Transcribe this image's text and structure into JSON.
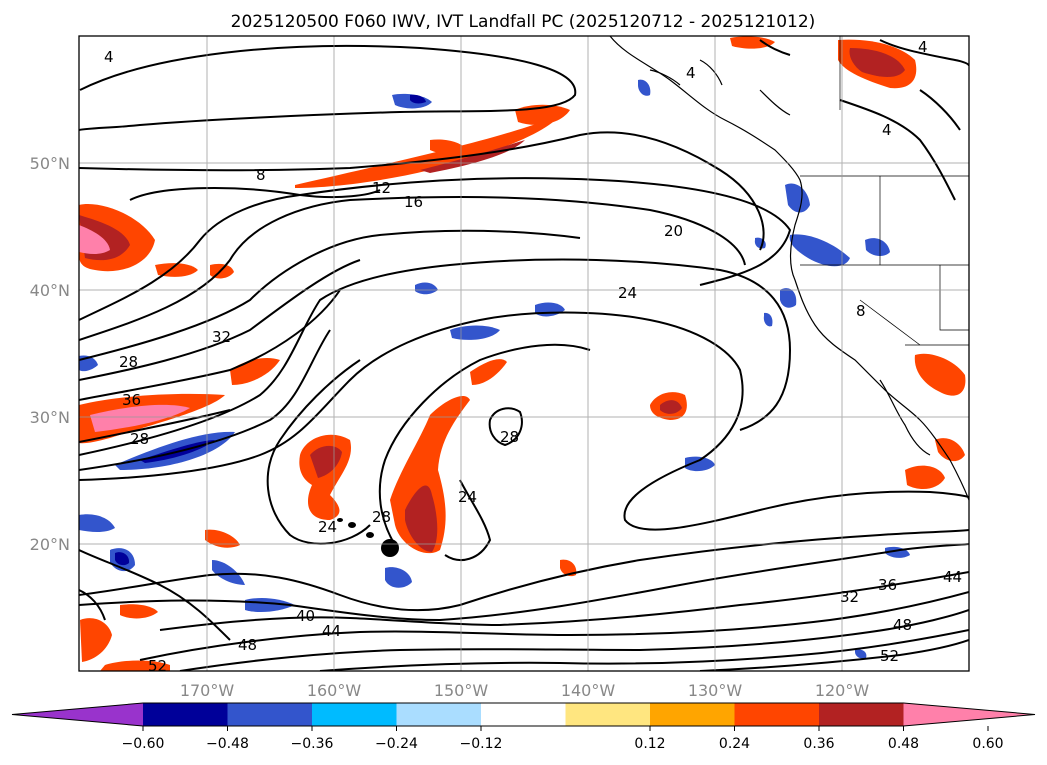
{
  "title": "2025120500 F060 IWV, IVT Landfall PC (2025120712 - 2025121012)",
  "lat_labels": [
    "50°N",
    "40°N",
    "30°N",
    "20°N"
  ],
  "lon_labels": [
    "170°W",
    "160°W",
    "150°W",
    "140°W",
    "130°W",
    "120°W"
  ],
  "colorbar": {
    "ticks": [
      "−0.60",
      "−0.48",
      "−0.36",
      "−0.24",
      "−0.12",
      "0.12",
      "0.24",
      "0.36",
      "0.48",
      "0.60"
    ],
    "colors": [
      "#9933cc",
      "#000099",
      "#3355cc",
      "#00bbff",
      "#aaddff",
      "#ffffff",
      "#ffe680",
      "#ffa500",
      "#ff4500",
      "#b22222",
      "#ff80aa"
    ]
  },
  "contour_labels": [
    "4",
    "4",
    "8",
    "12",
    "16",
    "20",
    "24",
    "28",
    "32",
    "36",
    "28",
    "28",
    "24",
    "28",
    "24",
    "40",
    "44",
    "48",
    "52",
    "48",
    "52",
    "32",
    "36",
    "44",
    "4",
    "8",
    "4"
  ]
}
